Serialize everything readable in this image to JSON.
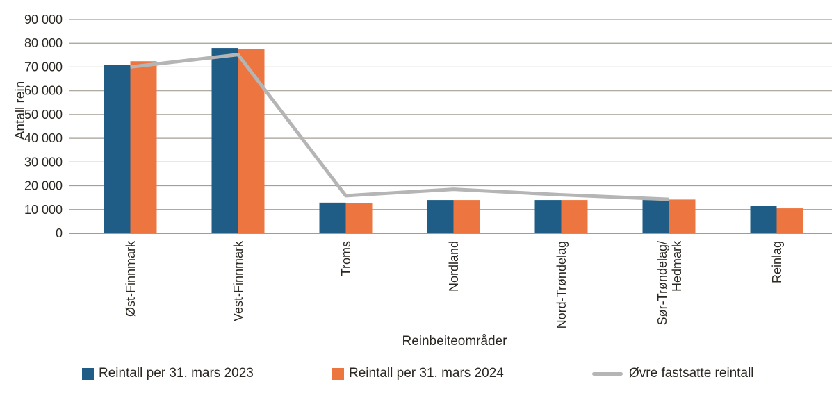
{
  "chart_data": {
    "type": "bar+line",
    "title": "",
    "xlabel": "Reinbeiteområder",
    "ylabel": "Antall rein",
    "categories": [
      "Øst-Finnmark",
      "Vest-Finnmark",
      "Troms",
      "Nordland",
      "Nord-Trøndelag",
      "Sør-Trøndelag/\nHedmark",
      "Reinlag"
    ],
    "series": [
      {
        "name": "Reintall per 31. mars 2023",
        "type": "bar",
        "color": "#1f5d86",
        "values": [
          71000,
          78000,
          12900,
          14000,
          14000,
          14000,
          11400
        ]
      },
      {
        "name": "Reintall per 31. mars 2024",
        "type": "bar",
        "color": "#ed7540",
        "values": [
          72400,
          77600,
          12800,
          14000,
          14000,
          14200,
          10500
        ]
      },
      {
        "name": "Øvre fastsatte reintall",
        "type": "line",
        "color": "#b5b5b5",
        "values": [
          70000,
          75200,
          15800,
          18500,
          16200,
          14300,
          null
        ]
      }
    ],
    "ylim": [
      0,
      90000
    ],
    "y_ticks": {
      "values": [
        0,
        10000,
        20000,
        30000,
        40000,
        50000,
        60000,
        70000,
        80000,
        90000
      ],
      "labels": [
        "0",
        "10 000",
        "20 000",
        "30 000",
        "40 000",
        "50 000",
        "60 000",
        "70 000",
        "80 000",
        "90 000"
      ]
    },
    "grid": "horizontal",
    "legend_position": "bottom",
    "colors": {
      "gridline": "#a59f93",
      "baseline": "#9c9c9c",
      "text": "#2b2722"
    }
  }
}
